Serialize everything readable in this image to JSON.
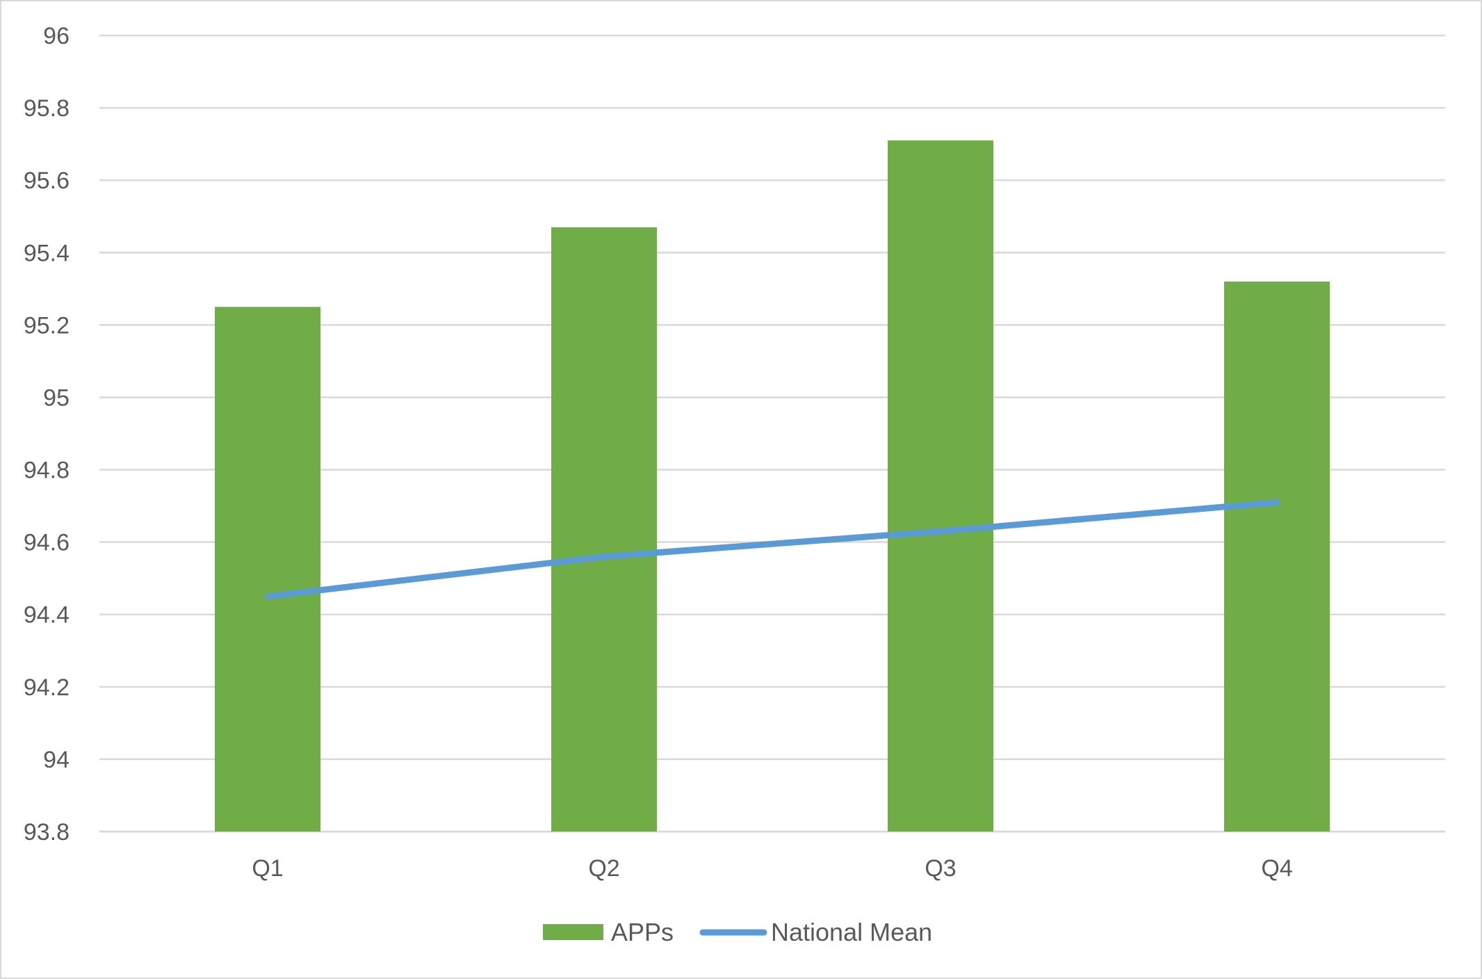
{
  "chart_data": {
    "type": "bar",
    "categories": [
      "Q1",
      "Q2",
      "Q3",
      "Q4"
    ],
    "series": [
      {
        "name": "APPs",
        "type": "bar",
        "color": "#70ad47",
        "values": [
          95.25,
          95.47,
          95.71,
          95.32
        ]
      },
      {
        "name": "National Mean",
        "type": "line",
        "color": "#5b9bd5",
        "values": [
          94.45,
          94.56,
          94.63,
          94.71
        ]
      }
    ],
    "title": "",
    "xlabel": "",
    "ylabel": "",
    "ylim": [
      93.8,
      96
    ],
    "yticks": [
      "93.8",
      "94",
      "94.2",
      "94.4",
      "94.6",
      "94.8",
      "95",
      "95.2",
      "95.4",
      "95.6",
      "95.8",
      "96"
    ],
    "grid": true,
    "gridline_color": "#d9d9d9",
    "legend_position": "bottom"
  }
}
